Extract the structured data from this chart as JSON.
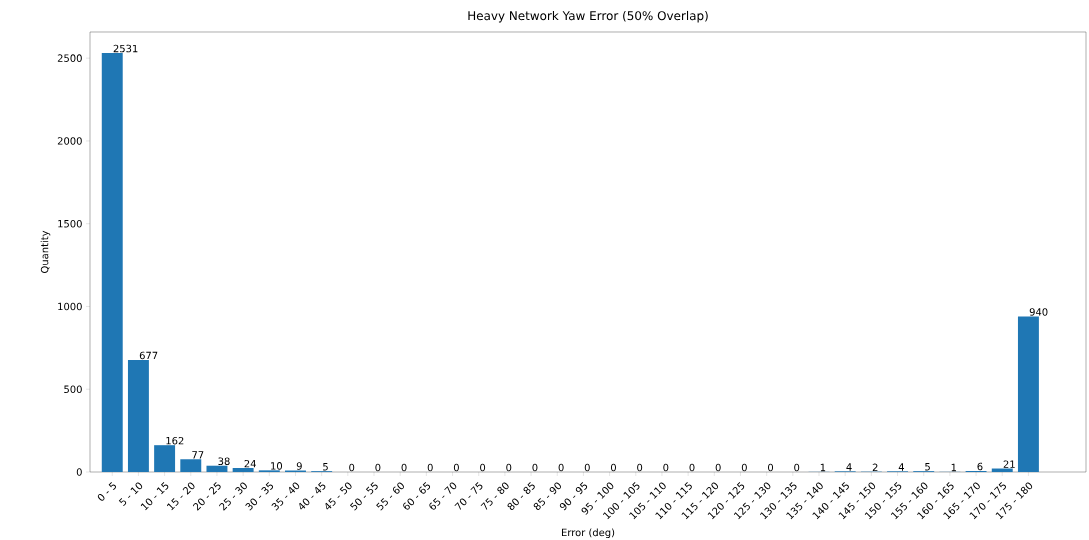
{
  "chart_data": {
    "type": "bar",
    "title": "Heavy Network Yaw Error (50% Overlap)",
    "xlabel": "Error (deg)",
    "ylabel": "Quantity",
    "categories": [
      "0 - 5",
      "5 - 10",
      "10 - 15",
      "15 - 20",
      "20 - 25",
      "25 - 30",
      "30 - 35",
      "35 - 40",
      "40 - 45",
      "45 - 50",
      "50 - 55",
      "55 - 60",
      "60 - 65",
      "65 - 70",
      "70 - 75",
      "75 - 80",
      "80 - 85",
      "85 - 90",
      "90 - 95",
      "95 - 100",
      "100 - 105",
      "105 - 110",
      "110 - 115",
      "115 - 120",
      "120 - 125",
      "125 - 130",
      "130 - 135",
      "135 - 140",
      "140 - 145",
      "145 - 150",
      "150 - 155",
      "155 - 160",
      "160 - 165",
      "165 - 170",
      "170 - 175",
      "175 - 180"
    ],
    "values": [
      2531,
      677,
      162,
      77,
      38,
      24,
      10,
      9,
      5,
      0,
      0,
      0,
      0,
      0,
      0,
      0,
      0,
      0,
      0,
      0,
      0,
      0,
      0,
      0,
      0,
      0,
      0,
      1,
      4,
      2,
      4,
      5,
      1,
      6,
      21,
      940
    ],
    "color": "#1f77b4",
    "ylim": [
      0,
      2658
    ],
    "yticks": [
      0,
      500,
      1000,
      1500,
      2000,
      2500
    ],
    "data_labels": true
  }
}
